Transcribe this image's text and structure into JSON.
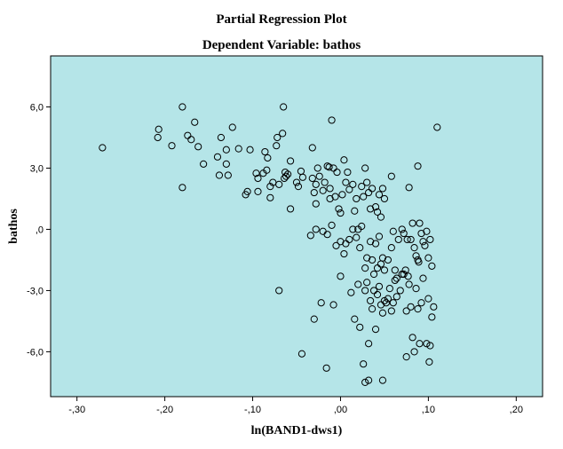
{
  "chart_data": {
    "type": "scatter",
    "title": "Partial Regression Plot",
    "subtitle": "Dependent Variable: bathos",
    "xlabel": "ln(BAND1-dws1)",
    "ylabel": "bathos",
    "xlim": [
      -0.33,
      0.23
    ],
    "ylim": [
      -8.2,
      8.5
    ],
    "x_ticks": [
      -0.3,
      -0.2,
      -0.1,
      0.0,
      0.1,
      0.2
    ],
    "x_tick_labels": [
      "-,30",
      "-,20",
      "-,10",
      ",00",
      ",10",
      ",20"
    ],
    "y_ticks": [
      6,
      3,
      0,
      -3,
      -6
    ],
    "y_tick_labels": [
      "6,0",
      "3,0",
      ",0",
      "-3,0",
      "-6,0"
    ],
    "grid": false,
    "colors": {
      "plot_background": "#b5e5e8",
      "marker": "#000000",
      "frame": "#000000"
    },
    "marker": "open-circle",
    "points": [
      [
        -0.271,
        4.0
      ],
      [
        -0.207,
        4.9
      ],
      [
        -0.208,
        4.5
      ],
      [
        -0.192,
        4.1
      ],
      [
        -0.18,
        6.0
      ],
      [
        -0.18,
        2.05
      ],
      [
        -0.174,
        4.6
      ],
      [
        -0.17,
        4.4
      ],
      [
        -0.166,
        5.25
      ],
      [
        -0.162,
        4.05
      ],
      [
        -0.156,
        3.2
      ],
      [
        -0.14,
        3.55
      ],
      [
        -0.138,
        2.65
      ],
      [
        -0.136,
        4.5
      ],
      [
        -0.13,
        3.9
      ],
      [
        -0.13,
        3.2
      ],
      [
        -0.128,
        2.65
      ],
      [
        -0.123,
        5.0
      ],
      [
        -0.116,
        3.95
      ],
      [
        -0.108,
        1.7
      ],
      [
        -0.106,
        1.85
      ],
      [
        -0.103,
        3.9
      ],
      [
        -0.096,
        2.75
      ],
      [
        -0.094,
        1.85
      ],
      [
        -0.094,
        2.5
      ],
      [
        -0.088,
        2.75
      ],
      [
        -0.086,
        3.8
      ],
      [
        -0.084,
        2.9
      ],
      [
        -0.083,
        3.5
      ],
      [
        -0.08,
        1.55
      ],
      [
        -0.08,
        2.1
      ],
      [
        -0.077,
        2.3
      ],
      [
        -0.073,
        4.1
      ],
      [
        -0.072,
        4.5
      ],
      [
        -0.07,
        2.2
      ],
      [
        -0.066,
        4.7
      ],
      [
        -0.065,
        6.0
      ],
      [
        -0.064,
        2.5
      ],
      [
        -0.063,
        2.8
      ],
      [
        -0.062,
        2.6
      ],
      [
        -0.06,
        2.7
      ],
      [
        -0.057,
        3.35
      ],
      [
        -0.057,
        1.0
      ],
      [
        -0.05,
        2.3
      ],
      [
        -0.048,
        2.1
      ],
      [
        -0.045,
        2.85
      ],
      [
        -0.043,
        2.55
      ],
      [
        -0.032,
        4.0
      ],
      [
        -0.032,
        2.5
      ],
      [
        -0.03,
        1.8
      ],
      [
        -0.028,
        2.2
      ],
      [
        -0.028,
        1.25
      ],
      [
        -0.026,
        3.0
      ],
      [
        -0.024,
        2.6
      ],
      [
        -0.02,
        1.9
      ],
      [
        -0.018,
        2.3
      ],
      [
        -0.015,
        3.1
      ],
      [
        -0.013,
        3.05
      ],
      [
        -0.012,
        1.5
      ],
      [
        -0.012,
        2.0
      ],
      [
        -0.01,
        5.35
      ],
      [
        -0.008,
        3.0
      ],
      [
        -0.006,
        1.6
      ],
      [
        -0.004,
        2.8
      ],
      [
        -0.002,
        1.0
      ],
      [
        0.0,
        0.8
      ],
      [
        0.002,
        1.7
      ],
      [
        0.004,
        3.4
      ],
      [
        0.006,
        2.3
      ],
      [
        0.008,
        2.8
      ],
      [
        0.01,
        1.95
      ],
      [
        0.014,
        2.2
      ],
      [
        0.016,
        0.9
      ],
      [
        0.018,
        1.5
      ],
      [
        0.02,
        0.0
      ],
      [
        0.024,
        2.1
      ],
      [
        0.026,
        1.6
      ],
      [
        0.028,
        3.0
      ],
      [
        0.03,
        2.3
      ],
      [
        0.032,
        1.8
      ],
      [
        0.034,
        1.0
      ],
      [
        0.036,
        2.0
      ],
      [
        0.04,
        1.1
      ],
      [
        0.042,
        0.85
      ],
      [
        0.044,
        1.7
      ],
      [
        0.046,
        0.6
      ],
      [
        0.048,
        2.0
      ],
      [
        0.05,
        1.5
      ],
      [
        0.058,
        2.6
      ],
      [
        0.07,
        0.0
      ],
      [
        0.078,
        2.05
      ],
      [
        0.088,
        3.1
      ],
      [
        0.11,
        5.0
      ],
      [
        -0.034,
        -0.3
      ],
      [
        -0.028,
        0.0
      ],
      [
        -0.02,
        -0.1
      ],
      [
        -0.015,
        -0.25
      ],
      [
        -0.01,
        0.2
      ],
      [
        -0.005,
        -0.8
      ],
      [
        0.0,
        -0.6
      ],
      [
        0.004,
        -1.2
      ],
      [
        0.006,
        -0.7
      ],
      [
        0.01,
        -0.5
      ],
      [
        0.014,
        0.0
      ],
      [
        0.018,
        -0.4
      ],
      [
        0.022,
        -0.9
      ],
      [
        0.024,
        0.15
      ],
      [
        0.028,
        -1.9
      ],
      [
        0.03,
        -1.4
      ],
      [
        0.034,
        -0.6
      ],
      [
        0.036,
        -1.5
      ],
      [
        0.038,
        -2.2
      ],
      [
        0.04,
        -0.7
      ],
      [
        0.042,
        -1.9
      ],
      [
        0.044,
        -0.35
      ],
      [
        0.046,
        -1.7
      ],
      [
        0.048,
        -1.4
      ],
      [
        0.05,
        -2.0
      ],
      [
        0.054,
        -1.5
      ],
      [
        0.058,
        -0.9
      ],
      [
        0.06,
        -0.1
      ],
      [
        0.062,
        -2.0
      ],
      [
        0.064,
        -2.4
      ],
      [
        0.066,
        -0.5
      ],
      [
        0.07,
        -2.2
      ],
      [
        0.072,
        -0.2
      ],
      [
        0.074,
        -2.0
      ],
      [
        0.076,
        -0.5
      ],
      [
        0.078,
        -2.7
      ],
      [
        0.08,
        -0.5
      ],
      [
        0.082,
        0.3
      ],
      [
        0.084,
        -0.9
      ],
      [
        0.086,
        -1.3
      ],
      [
        0.088,
        -1.5
      ],
      [
        0.089,
        -1.6
      ],
      [
        0.09,
        0.3
      ],
      [
        0.092,
        -0.2
      ],
      [
        0.094,
        -0.6
      ],
      [
        0.096,
        -0.8
      ],
      [
        0.098,
        -0.1
      ],
      [
        0.1,
        -1.4
      ],
      [
        0.102,
        -0.5
      ],
      [
        0.104,
        -1.8
      ],
      [
        -0.07,
        -3.0
      ],
      [
        -0.044,
        -6.1
      ],
      [
        -0.03,
        -4.4
      ],
      [
        -0.022,
        -3.6
      ],
      [
        -0.016,
        -6.8
      ],
      [
        -0.008,
        -3.7
      ],
      [
        0.0,
        -2.3
      ],
      [
        0.012,
        -3.1
      ],
      [
        0.016,
        -4.4
      ],
      [
        0.02,
        -2.7
      ],
      [
        0.022,
        -4.8
      ],
      [
        0.026,
        -6.6
      ],
      [
        0.028,
        -3.0
      ],
      [
        0.03,
        -2.6
      ],
      [
        0.032,
        -5.6
      ],
      [
        0.034,
        -3.5
      ],
      [
        0.036,
        -3.9
      ],
      [
        0.038,
        -3.0
      ],
      [
        0.04,
        -4.9
      ],
      [
        0.042,
        -3.2
      ],
      [
        0.044,
        -2.8
      ],
      [
        0.046,
        -3.7
      ],
      [
        0.048,
        -4.1
      ],
      [
        0.05,
        -3.5
      ],
      [
        0.052,
        -3.6
      ],
      [
        0.054,
        -3.4
      ],
      [
        0.056,
        -2.9
      ],
      [
        0.058,
        -4.0
      ],
      [
        0.06,
        -3.6
      ],
      [
        0.062,
        -2.5
      ],
      [
        0.064,
        -3.3
      ],
      [
        0.068,
        -3.0
      ],
      [
        0.072,
        -2.2
      ],
      [
        0.075,
        -4.0
      ],
      [
        0.075,
        -6.25
      ],
      [
        0.077,
        -2.3
      ],
      [
        0.08,
        -3.8
      ],
      [
        0.082,
        -5.3
      ],
      [
        0.084,
        -6.0
      ],
      [
        0.086,
        -2.9
      ],
      [
        0.088,
        -3.9
      ],
      [
        0.09,
        -5.6
      ],
      [
        0.092,
        -3.6
      ],
      [
        0.094,
        -2.4
      ],
      [
        0.098,
        -5.6
      ],
      [
        0.1,
        -3.4
      ],
      [
        0.101,
        -6.5
      ],
      [
        0.102,
        -5.7
      ],
      [
        0.104,
        -4.3
      ],
      [
        0.106,
        -3.8
      ],
      [
        0.028,
        -7.5
      ],
      [
        0.032,
        -7.4
      ],
      [
        0.048,
        -7.4
      ]
    ]
  }
}
